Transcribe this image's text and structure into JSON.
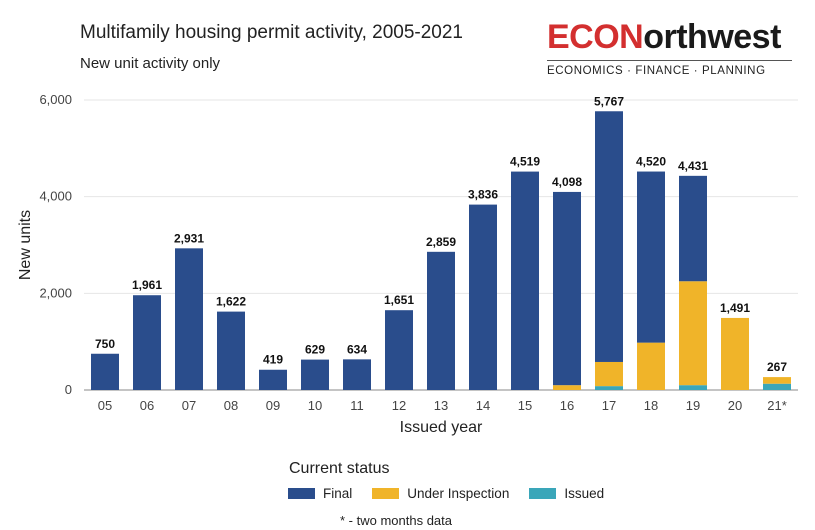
{
  "header": {
    "title": "Multifamily housing permit activity, 2005-2021",
    "subtitle": "New unit activity only"
  },
  "logo": {
    "part1": "ECON",
    "part2": "orthwest",
    "tagline": "ECONOMICS · FINANCE · PLANNING"
  },
  "legend": {
    "title": "Current status"
  },
  "footnote": "* - two months data",
  "colors": {
    "Final": "#2a4d8c",
    "Under Inspection": "#f0b429",
    "Issued": "#3aa6b9",
    "grid": "#e6e6e6"
  },
  "chart_data": {
    "type": "bar",
    "stacked": true,
    "xlabel": "Issued year",
    "ylabel": "New units",
    "ylim": [
      0,
      6000
    ],
    "yticks": [
      0,
      2000,
      4000,
      6000
    ],
    "ytick_labels": [
      "0",
      "2,000",
      "4,000",
      "6,000"
    ],
    "categories": [
      "05",
      "06",
      "07",
      "08",
      "09",
      "10",
      "11",
      "12",
      "13",
      "14",
      "15",
      "16",
      "17",
      "18",
      "19",
      "20",
      "21"
    ],
    "category_labels": [
      "05",
      "06",
      "07",
      "08",
      "09",
      "10",
      "11",
      "12",
      "13",
      "14",
      "15",
      "16",
      "17",
      "18",
      "19",
      "20",
      "21*"
    ],
    "series": [
      {
        "name": "Issued",
        "values": [
          0,
          0,
          0,
          0,
          0,
          0,
          0,
          0,
          0,
          0,
          0,
          0,
          80,
          0,
          100,
          0,
          130
        ]
      },
      {
        "name": "Under Inspection",
        "values": [
          0,
          0,
          0,
          0,
          0,
          0,
          0,
          0,
          0,
          0,
          0,
          100,
          500,
          980,
          2150,
          1491,
          137
        ]
      },
      {
        "name": "Final",
        "values": [
          750,
          1961,
          2931,
          1622,
          419,
          629,
          634,
          1651,
          2859,
          3836,
          4519,
          3998,
          5187,
          3540,
          2181,
          0,
          0
        ]
      }
    ],
    "legend_order": [
      "Final",
      "Under Inspection",
      "Issued"
    ],
    "totals": [
      750,
      1961,
      2931,
      1622,
      419,
      629,
      634,
      1651,
      2859,
      3836,
      4519,
      4098,
      5767,
      4520,
      4431,
      1491,
      267
    ],
    "total_labels": [
      "750",
      "1,961",
      "2,931",
      "1,622",
      "419",
      "629",
      "634",
      "1,651",
      "2,859",
      "3,836",
      "4,519",
      "4,098",
      "5,767",
      "4,520",
      "4,431",
      "1,491",
      "267"
    ],
    "grid": true,
    "legend_position": "bottom"
  }
}
